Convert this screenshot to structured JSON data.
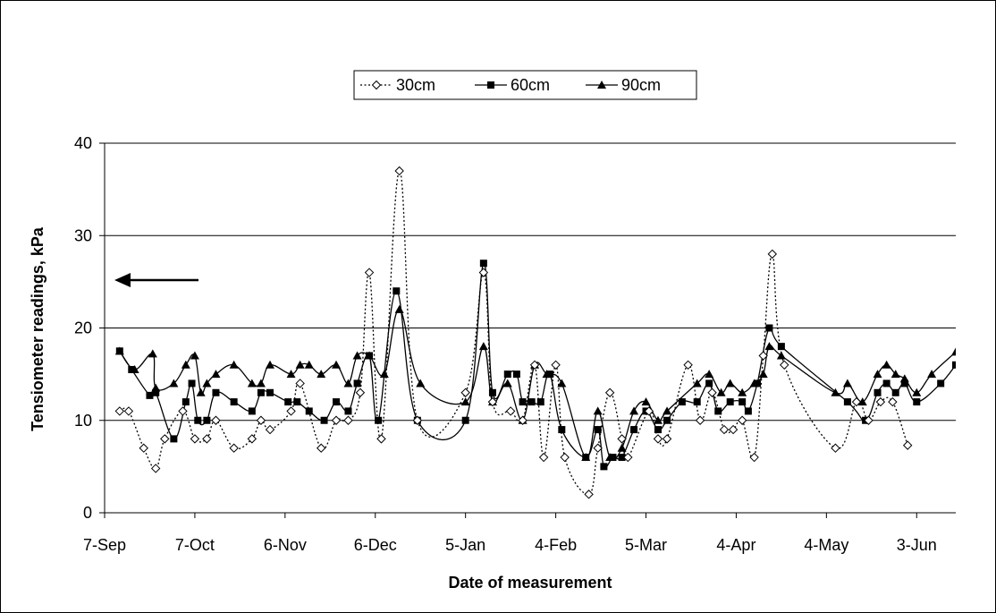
{
  "chart_data": {
    "type": "line",
    "title": "",
    "xlabel": "Date of measurement",
    "ylabel": "Tensiometer readings, kPa",
    "ylim": [
      0,
      40
    ],
    "yticks": [
      "0",
      "10",
      "20",
      "30",
      "40"
    ],
    "xticks": [
      {
        "label": "7-Sep",
        "day": 0
      },
      {
        "label": "7-Oct",
        "day": 30
      },
      {
        "label": "6-Nov",
        "day": 60
      },
      {
        "label": "6-Dec",
        "day": 90
      },
      {
        "label": "5-Jan",
        "day": 120
      },
      {
        "label": "4-Feb",
        "day": 150
      },
      {
        "label": "5-Mar",
        "day": 180
      },
      {
        "label": "4-Apr",
        "day": 210
      },
      {
        "label": "4-May",
        "day": 240
      },
      {
        "label": "3-Jun",
        "day": 270
      }
    ],
    "xlim": [
      0,
      283
    ],
    "grid": "horizontal",
    "legend_position": "top-center",
    "series": [
      {
        "name": "30cm",
        "marker": "diamond-open",
        "line": "dotted",
        "points": [
          [
            5,
            11
          ],
          [
            8,
            11
          ],
          [
            13,
            7
          ],
          [
            17,
            4.8
          ],
          [
            20,
            8
          ],
          [
            26,
            11
          ],
          [
            30,
            8
          ],
          [
            34,
            8
          ],
          [
            37,
            10
          ],
          [
            43,
            7
          ],
          [
            49,
            8
          ],
          [
            52,
            10
          ],
          [
            55,
            9
          ],
          [
            62,
            11
          ],
          [
            65,
            14
          ],
          [
            72,
            7
          ],
          [
            77,
            10
          ],
          [
            81,
            10
          ],
          [
            85,
            13
          ],
          [
            88,
            26
          ],
          [
            92,
            8
          ],
          [
            98,
            37
          ],
          [
            104,
            10
          ],
          [
            120,
            13
          ],
          [
            126,
            26
          ],
          [
            129,
            12
          ],
          [
            135,
            11
          ],
          [
            139,
            10
          ],
          [
            143,
            16
          ],
          [
            146,
            6
          ],
          [
            150,
            16
          ],
          [
            153,
            6
          ],
          [
            161,
            2
          ],
          [
            164,
            7
          ],
          [
            168,
            13
          ],
          [
            172,
            8
          ],
          [
            174,
            6
          ],
          [
            181,
            11
          ],
          [
            184,
            8
          ],
          [
            187,
            8
          ],
          [
            194,
            16
          ],
          [
            198,
            10
          ],
          [
            202,
            13
          ],
          [
            206,
            9
          ],
          [
            209,
            9
          ],
          [
            212,
            10
          ],
          [
            216,
            6
          ],
          [
            219,
            17
          ],
          [
            222,
            28
          ],
          [
            226,
            16
          ],
          [
            243,
            7
          ],
          [
            250,
            12
          ],
          [
            254,
            10
          ],
          [
            258,
            12
          ],
          [
            262,
            12
          ],
          [
            267,
            7.3
          ]
        ]
      },
      {
        "name": "60cm",
        "marker": "square-filled",
        "line": "solid",
        "points": [
          [
            5,
            17.5
          ],
          [
            9,
            15.5
          ],
          [
            15,
            12.7
          ],
          [
            17,
            13
          ],
          [
            23,
            8
          ],
          [
            27,
            12
          ],
          [
            29,
            14
          ],
          [
            31,
            10
          ],
          [
            34,
            10
          ],
          [
            37,
            13
          ],
          [
            43,
            12
          ],
          [
            49,
            11
          ],
          [
            52,
            13
          ],
          [
            55,
            13
          ],
          [
            61,
            12
          ],
          [
            64,
            12
          ],
          [
            68,
            11
          ],
          [
            73,
            10
          ],
          [
            77,
            12
          ],
          [
            81,
            11
          ],
          [
            84,
            14
          ],
          [
            88,
            17
          ],
          [
            91,
            10
          ],
          [
            97,
            24
          ],
          [
            104,
            10
          ],
          [
            120,
            10
          ],
          [
            126,
            27
          ],
          [
            129,
            13
          ],
          [
            134,
            15
          ],
          [
            137,
            15
          ],
          [
            139,
            12
          ],
          [
            142,
            12
          ],
          [
            145,
            12
          ],
          [
            148,
            15
          ],
          [
            152,
            9
          ],
          [
            160,
            6
          ],
          [
            164,
            9
          ],
          [
            166,
            5
          ],
          [
            169,
            6
          ],
          [
            172,
            6
          ],
          [
            176,
            9
          ],
          [
            180,
            11
          ],
          [
            184,
            9
          ],
          [
            187,
            10
          ],
          [
            192,
            12
          ],
          [
            197,
            12
          ],
          [
            201,
            14
          ],
          [
            204,
            11
          ],
          [
            208,
            12
          ],
          [
            212,
            12
          ],
          [
            214,
            11
          ],
          [
            217,
            14
          ],
          [
            221,
            20
          ],
          [
            225,
            18
          ],
          [
            247,
            12
          ],
          [
            253,
            10
          ],
          [
            257,
            13
          ],
          [
            260,
            14
          ],
          [
            263,
            13
          ],
          [
            266,
            14
          ],
          [
            270,
            12
          ],
          [
            278,
            14
          ],
          [
            283,
            16
          ]
        ]
      },
      {
        "name": "90cm",
        "marker": "triangle-filled",
        "line": "solid",
        "points": [
          [
            5,
            17.5
          ],
          [
            10,
            15.5
          ],
          [
            16,
            17.2
          ],
          [
            17,
            13.5
          ],
          [
            23,
            14
          ],
          [
            27,
            16
          ],
          [
            30,
            17
          ],
          [
            32,
            13
          ],
          [
            34,
            14
          ],
          [
            37,
            15
          ],
          [
            43,
            16
          ],
          [
            49,
            14
          ],
          [
            52,
            14
          ],
          [
            55,
            16
          ],
          [
            62,
            15
          ],
          [
            65,
            16
          ],
          [
            68,
            16
          ],
          [
            72,
            15
          ],
          [
            77,
            16
          ],
          [
            81,
            14
          ],
          [
            84,
            17
          ],
          [
            88,
            17
          ],
          [
            93,
            15
          ],
          [
            98,
            22
          ],
          [
            105,
            14
          ],
          [
            120,
            12
          ],
          [
            126,
            18
          ],
          [
            129,
            12
          ],
          [
            134,
            14
          ],
          [
            139,
            10
          ],
          [
            143,
            16
          ],
          [
            147,
            15
          ],
          [
            152,
            14
          ],
          [
            160,
            6
          ],
          [
            164,
            11
          ],
          [
            168,
            6
          ],
          [
            172,
            7
          ],
          [
            176,
            11
          ],
          [
            180,
            12
          ],
          [
            184,
            10
          ],
          [
            187,
            11
          ],
          [
            197,
            14
          ],
          [
            201,
            15
          ],
          [
            205,
            13
          ],
          [
            208,
            14
          ],
          [
            212,
            13
          ],
          [
            216,
            14
          ],
          [
            219,
            15
          ],
          [
            221,
            18
          ],
          [
            225,
            17
          ],
          [
            243,
            13
          ],
          [
            247,
            14
          ],
          [
            252,
            12
          ],
          [
            257,
            15
          ],
          [
            260,
            16
          ],
          [
            263,
            15
          ],
          [
            266,
            14.5
          ],
          [
            270,
            13
          ],
          [
            275,
            15
          ],
          [
            283,
            17.4
          ]
        ]
      }
    ]
  }
}
